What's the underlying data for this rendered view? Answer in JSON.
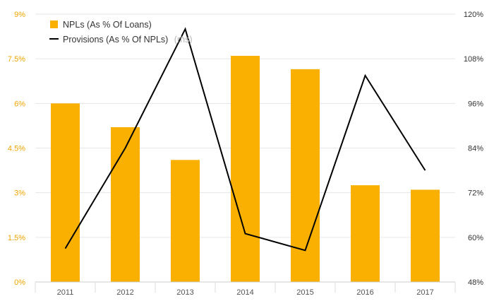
{
  "chart_data": {
    "type": "bar",
    "categories": [
      "2011",
      "2012",
      "2013",
      "2014",
      "2015",
      "2016",
      "2017"
    ],
    "series": [
      {
        "name": "NPLs (As % Of Loans)",
        "chart": "bar",
        "axis": "left",
        "values": [
          6.0,
          5.2,
          4.1,
          7.6,
          7.15,
          3.25,
          3.1
        ]
      },
      {
        "name": "Provisions (As % Of NPLs)",
        "name_suffix": "(rhs)",
        "chart": "line",
        "axis": "right",
        "values": [
          57.0,
          84.0,
          116.0,
          61.0,
          56.5,
          103.5,
          78.0
        ]
      }
    ],
    "y_left": {
      "min": 0,
      "max": 9,
      "ticks": [
        "0%",
        "1.5%",
        "3%",
        "4.5%",
        "6%",
        "7.5%",
        "9%"
      ]
    },
    "y_right": {
      "min": 48,
      "max": 120,
      "ticks": [
        "48%",
        "60%",
        "72%",
        "84%",
        "96%",
        "108%",
        "120%"
      ]
    },
    "grid": true,
    "legend_position": "top-left",
    "colors": {
      "bar": "#f9b000",
      "line": "#000000",
      "grid": "#e6e6e6",
      "left_ticks": "#f0a500"
    }
  }
}
